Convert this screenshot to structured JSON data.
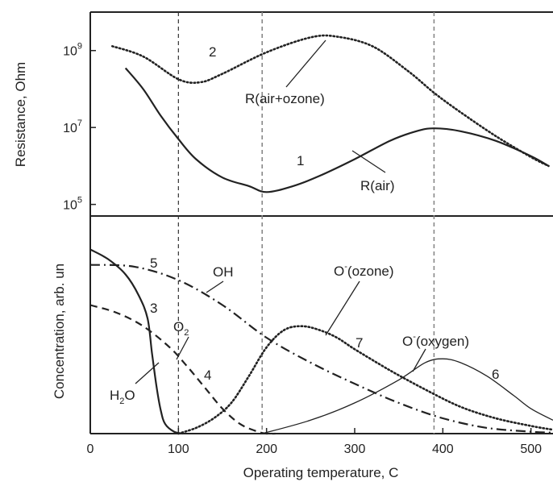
{
  "chart_data": [
    {
      "type": "line",
      "panel": "top",
      "ylabel": "Resistance, Ohm",
      "yscale": "log",
      "ylim": [
        50000,
        10000000000
      ],
      "xlim": [
        0,
        525
      ],
      "yticks": [
        {
          "value": 1000000000,
          "base": "10",
          "exp": "9"
        },
        {
          "value": 10000000,
          "base": "10",
          "exp": "7"
        },
        {
          "value": 100000,
          "base": "10",
          "exp": "5"
        }
      ],
      "vlines": [
        100,
        195,
        390
      ],
      "series": [
        {
          "name": "R(air+ozone)",
          "number": "2",
          "style": "dotted",
          "x": [
            25,
            60,
            100,
            125,
            150,
            200,
            250,
            280,
            320,
            360,
            390,
            420,
            460,
            500,
            520
          ],
          "y": [
            1300000000,
            700000000,
            180000000,
            150000000,
            250000000,
            900000000,
            2200000000,
            2300000000,
            1300000000,
            300000000,
            80000000,
            25000000,
            6000000,
            1700000,
            1000000
          ]
        },
        {
          "name": "R(air)",
          "number": "1",
          "style": "solid",
          "x": [
            40,
            60,
            80,
            100,
            120,
            150,
            180,
            200,
            230,
            260,
            300,
            340,
            370,
            390,
            420,
            460,
            500,
            520
          ],
          "y": [
            350000000,
            100000000,
            20000000,
            5000000,
            1500000,
            500000,
            300000,
            210000,
            300000,
            550000,
            1500000,
            4500000,
            8000000,
            9500000,
            8000000,
            4500000,
            1800000,
            1000000
          ]
        }
      ]
    },
    {
      "type": "line",
      "panel": "bottom",
      "ylabel": "Concentration, arb. un",
      "xlabel": "Operating temperature, C",
      "xlim": [
        0,
        525
      ],
      "ylim": [
        0,
        1
      ],
      "xticks": [
        0,
        100,
        200,
        300,
        400,
        500
      ],
      "vlines": [
        100,
        195,
        390
      ],
      "series": [
        {
          "name": "OH",
          "number": "5",
          "style": "dash-dot",
          "x": [
            0,
            50,
            100,
            150,
            200,
            250,
            300,
            350,
            400,
            450,
            500,
            525
          ],
          "y": [
            0.88,
            0.87,
            0.8,
            0.67,
            0.5,
            0.37,
            0.26,
            0.16,
            0.08,
            0.03,
            0.01,
            0.005
          ]
        },
        {
          "name": "H",
          "sub": "2",
          "suffix": "O",
          "number": "3",
          "style": "solid",
          "x": [
            0,
            20,
            40,
            55,
            65,
            70,
            75,
            80,
            85,
            95,
            105
          ],
          "y": [
            0.96,
            0.91,
            0.83,
            0.72,
            0.6,
            0.42,
            0.25,
            0.12,
            0.05,
            0.01,
            0.0
          ]
        },
        {
          "name": "O",
          "sub": "2",
          "number": "4",
          "style": "dashed",
          "x": [
            0,
            30,
            60,
            90,
            110,
            130,
            150,
            170,
            190,
            200,
            210
          ],
          "y": [
            0.67,
            0.63,
            0.56,
            0.45,
            0.35,
            0.24,
            0.13,
            0.05,
            0.01,
            0.0,
            0.0
          ]
        },
        {
          "name": "O",
          "sup": "-",
          "suffix": "(ozone)",
          "number": "7",
          "style": "dotted",
          "x": [
            100,
            120,
            140,
            160,
            180,
            200,
            220,
            240,
            260,
            280,
            300,
            340,
            380,
            420,
            460,
            500,
            525
          ],
          "y": [
            0.0,
            0.03,
            0.08,
            0.16,
            0.3,
            0.45,
            0.54,
            0.56,
            0.54,
            0.5,
            0.44,
            0.33,
            0.23,
            0.14,
            0.08,
            0.04,
            0.02
          ]
        },
        {
          "name": "O",
          "sup": "-",
          "suffix": "(oxygen)",
          "number": "6",
          "style": "solid",
          "x": [
            195,
            250,
            300,
            350,
            380,
            400,
            420,
            450,
            480,
            500,
            525
          ],
          "y": [
            0.0,
            0.07,
            0.16,
            0.28,
            0.37,
            0.39,
            0.37,
            0.3,
            0.2,
            0.13,
            0.07
          ]
        }
      ]
    }
  ]
}
